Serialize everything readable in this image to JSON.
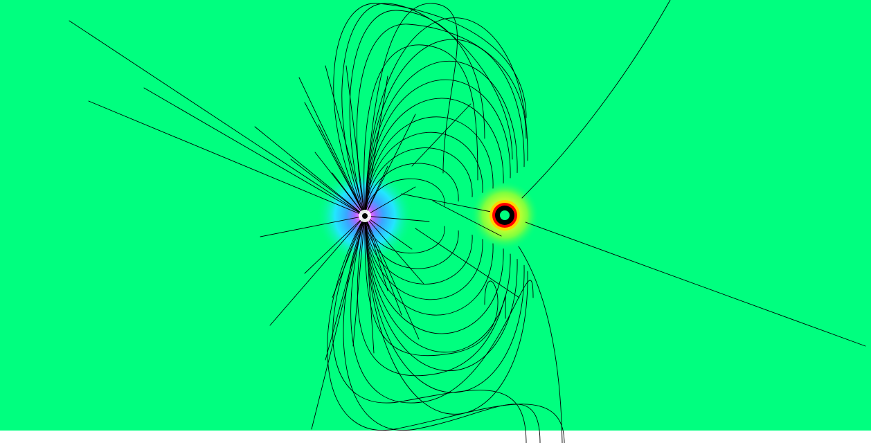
{
  "scene": {
    "description_kind": "electric-field-line-simulation",
    "background_color": "#00ff7f",
    "bottom_strip_color": "#ffffff",
    "field_line_color": "#000000",
    "charges": [
      {
        "name": "negative-charge",
        "sign": "negative",
        "glow_colors": [
          "#ffffff",
          "#ff66ff",
          "#9a6cff",
          "#3aa6ff",
          "#22e6ff",
          "#00ffbf"
        ]
      },
      {
        "name": "positive-charge",
        "sign": "positive",
        "ring_colors": [
          "#00ff7f",
          "#000000",
          "#ff0000",
          "#ffd400",
          "#ffff00",
          "#b7ff3a",
          "#62ff46"
        ]
      }
    ]
  }
}
